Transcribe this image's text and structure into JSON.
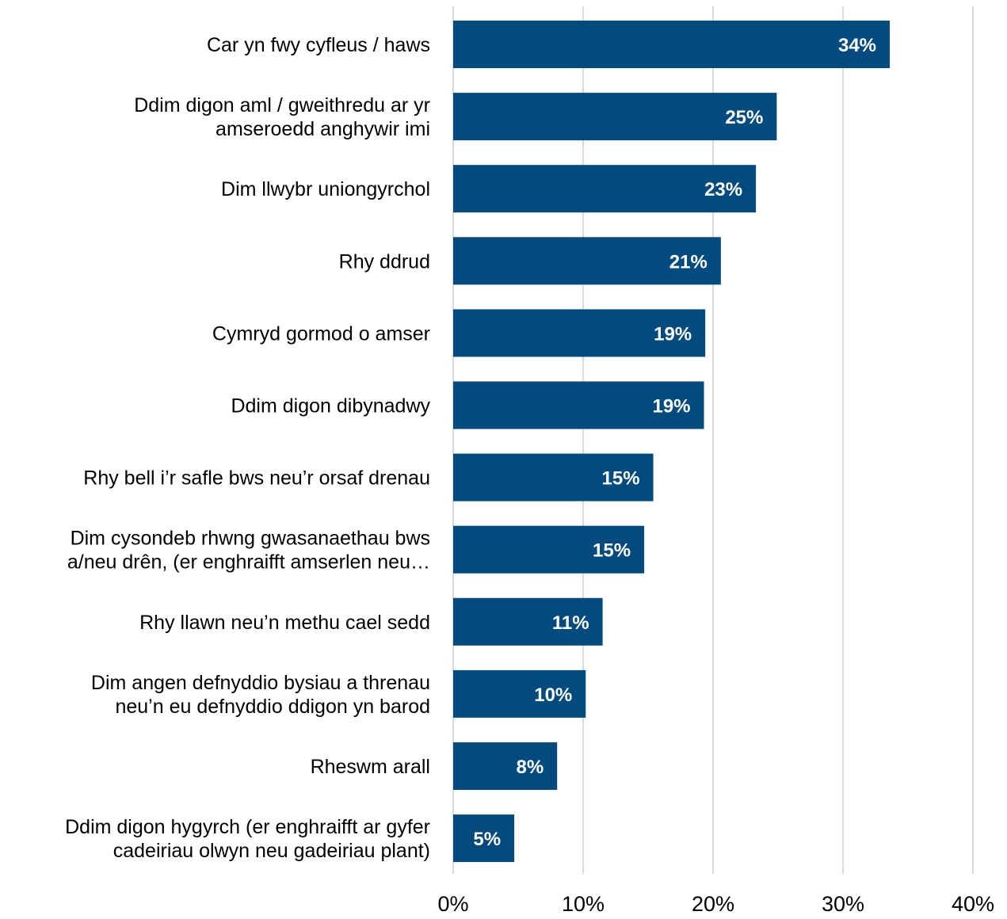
{
  "chart_data": {
    "type": "bar",
    "orientation": "horizontal",
    "title": "",
    "xlabel": "",
    "ylabel": "",
    "xlim": [
      0,
      40
    ],
    "ticks": [
      0,
      10,
      20,
      30,
      40
    ],
    "tick_labels": [
      "0%",
      "10%",
      "20%",
      "30%",
      "40%"
    ],
    "grid": "vertical",
    "legend": "none",
    "bar_color": "#034A7E",
    "categories": [
      [
        "Car yn fwy cyfleus / haws"
      ],
      [
        "Ddim digon aml / gweithredu ar yr",
        "amseroedd anghywir imi"
      ],
      [
        "Dim llwybr uniongyrchol"
      ],
      [
        "Rhy ddrud"
      ],
      [
        "Cymryd gormod o amser"
      ],
      [
        "Ddim digon dibynadwy"
      ],
      [
        "Rhy bell i’r safle bws neu’r orsaf drenau"
      ],
      [
        "Dim cysondeb rhwng gwasanaethau bws",
        "a/neu drên, (er enghraifft amserlen neu…"
      ],
      [
        "Rhy llawn neu’n methu cael sedd"
      ],
      [
        "Dim angen defnyddio bysiau a threnau",
        "neu’n eu defnyddio ddigon yn barod"
      ],
      [
        "Rheswm arall"
      ],
      [
        "Ddim digon hygyrch (er enghraifft ar gyfer",
        "cadeiriau olwyn neu gadeiriau plant)"
      ]
    ],
    "values": [
      33.6,
      24.9,
      23.3,
      20.6,
      19.4,
      19.3,
      15.4,
      14.7,
      11.5,
      10.2,
      8.0,
      4.7
    ],
    "value_labels": [
      "34%",
      "25%",
      "23%",
      "21%",
      "19%",
      "19%",
      "15%",
      "15%",
      "11%",
      "10%",
      "8%",
      "5%"
    ]
  }
}
